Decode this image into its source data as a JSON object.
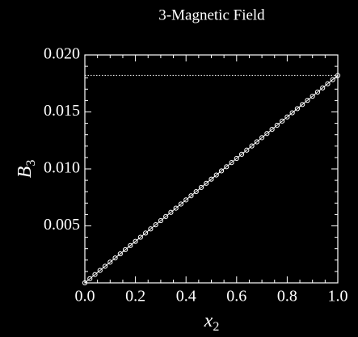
{
  "chart_data": {
    "type": "line",
    "title": "3-Magnetic Field",
    "x_label": "x",
    "x_label_sub": "2",
    "y_label": "B",
    "y_label_sub": "3",
    "x": [
      0,
      0.02,
      0.04,
      0.06,
      0.08,
      0.1,
      0.12,
      0.14,
      0.16,
      0.18,
      0.2,
      0.22,
      0.24,
      0.26,
      0.28,
      0.3,
      0.32,
      0.34,
      0.36,
      0.38,
      0.4,
      0.42,
      0.44,
      0.46,
      0.48,
      0.5,
      0.52,
      0.54,
      0.56,
      0.58,
      0.6,
      0.62,
      0.64,
      0.66,
      0.68,
      0.7,
      0.72,
      0.74,
      0.76,
      0.78,
      0.8,
      0.82,
      0.84,
      0.86,
      0.88,
      0.9,
      0.92,
      0.94,
      0.96,
      0.98,
      1
    ],
    "series": [
      {
        "color": "#ffffff",
        "marker": "circle",
        "values": [
          0,
          0.000364,
          0.000728,
          0.001092,
          0.001456,
          0.00182,
          0.002184,
          0.002548,
          0.002912,
          0.003276,
          0.00364,
          0.004004,
          0.004368,
          0.004732,
          0.005096,
          0.00546,
          0.005824,
          0.006188,
          0.006552,
          0.006916,
          0.00728,
          0.007644,
          0.008008,
          0.008372,
          0.008736,
          0.0091,
          0.009464,
          0.009828,
          0.010192,
          0.010556,
          0.01092,
          0.011284,
          0.011648,
          0.012012,
          0.012376,
          0.01274,
          0.013104,
          0.013468,
          0.013832,
          0.014196,
          0.01456,
          0.014924,
          0.015288,
          0.015652,
          0.016016,
          0.01638,
          0.016744,
          0.017108,
          0.017472,
          0.017836,
          0.0182
        ]
      }
    ],
    "hline": {
      "value": 0.0182,
      "style": "dotted",
      "color": "#ffffff"
    },
    "xlim": [
      0,
      1
    ],
    "ylim": [
      0,
      0.02
    ],
    "xticks": [
      {
        "value": 0,
        "label": "0.0"
      },
      {
        "value": 0.2,
        "label": "0.2"
      },
      {
        "value": 0.4,
        "label": "0.4"
      },
      {
        "value": 0.6,
        "label": "0.6"
      },
      {
        "value": 0.8,
        "label": "0.8"
      },
      {
        "value": 1,
        "label": "1.0"
      }
    ],
    "yticks": [
      0.005,
      {
        "value": 0.01,
        "label": "0.010"
      },
      0.015,
      {
        "value": 0.02,
        "label": "0.020"
      }
    ],
    "xminorticks": [
      0.05,
      0.1,
      0.15,
      0.25,
      0.3,
      0.35,
      0.45,
      0.5,
      0.55,
      0.65,
      0.7,
      0.75,
      0.85,
      0.9,
      0.95
    ],
    "yminorticks": [
      0.001,
      0.002,
      0.003,
      0.004,
      0.006,
      0.007,
      0.008,
      0.009,
      0.011,
      0.012,
      0.013,
      0.014,
      0.016,
      0.017,
      0.018,
      0.019
    ]
  }
}
